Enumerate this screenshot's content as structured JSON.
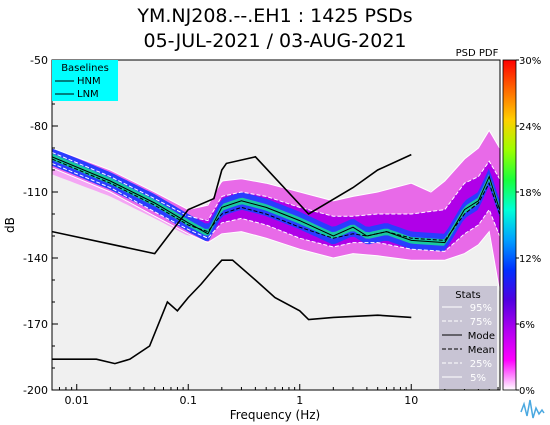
{
  "chart_data": {
    "type": "heatmap",
    "title_line1": "YM.NJ208.--.EH1 : 1425 PSDs",
    "title_line2": "05-JUL-2021 / 03-AUG-2021",
    "xlabel": "Frequency (Hz)",
    "ylabel": "dB",
    "x_scale": "log",
    "xlim": [
      0.006,
      62.5
    ],
    "ylim": [
      -200,
      -50
    ],
    "x_ticks": [
      {
        "v": 0.01,
        "label": "0.01"
      },
      {
        "v": 0.1,
        "label": "0.1"
      },
      {
        "v": 1,
        "label": "1"
      },
      {
        "v": 10,
        "label": "10"
      }
    ],
    "y_ticks": [
      {
        "v": -50,
        "label": "-50"
      },
      {
        "v": -80,
        "label": "-80"
      },
      {
        "v": -110,
        "label": "-110"
      },
      {
        "v": -140,
        "label": "-140"
      },
      {
        "v": -170,
        "label": "-170"
      },
      {
        "v": -200,
        "label": "-200"
      }
    ],
    "colorbar": {
      "label": "PSD PDF",
      "ticks": [
        "30%",
        "24%",
        "18%",
        "12%",
        "6%",
        "0%"
      ],
      "colors": [
        "#ff0000",
        "#ff6a00",
        "#ffd000",
        "#9cff00",
        "#19ff3c",
        "#00ffd8",
        "#00a0ff",
        "#0030ff",
        "#5000e0",
        "#b000f0",
        "#ff00ff",
        "#ffffff"
      ]
    },
    "baselines_legend": {
      "title": "Baselines",
      "items": [
        "HNM",
        "LNM"
      ]
    },
    "stats_legend": {
      "title": "Stats",
      "items": [
        "95%",
        "75%",
        "Mode",
        "Mean",
        "25%",
        "5%"
      ]
    },
    "hnm": [
      [
        0.006,
        -128
      ],
      [
        0.05,
        -138
      ],
      [
        0.1,
        -118
      ],
      [
        0.17,
        -113
      ],
      [
        0.2,
        -100
      ],
      [
        0.22,
        -97
      ],
      [
        0.4,
        -94
      ],
      [
        1.2,
        -120
      ],
      [
        3,
        -108
      ],
      [
        5,
        -100
      ],
      [
        10,
        -93
      ]
    ],
    "lnm": [
      [
        0.006,
        -186
      ],
      [
        0.015,
        -186
      ],
      [
        0.022,
        -188
      ],
      [
        0.03,
        -186
      ],
      [
        0.045,
        -180
      ],
      [
        0.065,
        -160
      ],
      [
        0.08,
        -164
      ],
      [
        0.1,
        -158
      ],
      [
        0.13,
        -152
      ],
      [
        0.17,
        -145
      ],
      [
        0.2,
        -141
      ],
      [
        0.25,
        -141
      ],
      [
        0.4,
        -150
      ],
      [
        0.6,
        -158
      ],
      [
        1.0,
        -164
      ],
      [
        1.2,
        -168
      ],
      [
        2,
        -167
      ],
      [
        5,
        -166
      ],
      [
        10,
        -167
      ]
    ],
    "mode": [
      [
        0.006,
        -94
      ],
      [
        0.02,
        -105
      ],
      [
        0.05,
        -115
      ],
      [
        0.1,
        -124
      ],
      [
        0.15,
        -129
      ],
      [
        0.2,
        -117
      ],
      [
        0.3,
        -114
      ],
      [
        0.5,
        -117
      ],
      [
        1,
        -123
      ],
      [
        2,
        -130
      ],
      [
        3,
        -126
      ],
      [
        4,
        -130
      ],
      [
        6,
        -128
      ],
      [
        10,
        -132
      ],
      [
        20,
        -133
      ],
      [
        30,
        -118
      ],
      [
        40,
        -114
      ],
      [
        50,
        -103
      ],
      [
        62,
        -118
      ]
    ],
    "mean": [
      [
        0.006,
        -95
      ],
      [
        0.02,
        -106
      ],
      [
        0.05,
        -116
      ],
      [
        0.1,
        -125
      ],
      [
        0.15,
        -128
      ],
      [
        0.2,
        -120
      ],
      [
        0.3,
        -117
      ],
      [
        0.5,
        -120
      ],
      [
        1,
        -126
      ],
      [
        2,
        -131
      ],
      [
        3,
        -129
      ],
      [
        4,
        -130
      ],
      [
        6,
        -128
      ],
      [
        10,
        -131
      ],
      [
        20,
        -132
      ],
      [
        30,
        -120
      ],
      [
        40,
        -115
      ],
      [
        50,
        -106
      ],
      [
        62,
        -120
      ]
    ],
    "p95": [
      [
        0.006,
        -90
      ],
      [
        0.02,
        -100
      ],
      [
        0.05,
        -110
      ],
      [
        0.1,
        -118
      ],
      [
        0.15,
        -116
      ],
      [
        0.2,
        -105
      ],
      [
        0.3,
        -104
      ],
      [
        0.5,
        -106
      ],
      [
        1,
        -110
      ],
      [
        2,
        -114
      ],
      [
        3,
        -112
      ],
      [
        5,
        -110
      ],
      [
        10,
        -106
      ],
      [
        15,
        -110
      ],
      [
        20,
        -105
      ],
      [
        30,
        -95
      ],
      [
        40,
        -90
      ],
      [
        50,
        -82
      ],
      [
        62,
        -90
      ]
    ],
    "p75": [
      [
        0.006,
        -92
      ],
      [
        0.02,
        -103
      ],
      [
        0.05,
        -113
      ],
      [
        0.1,
        -121
      ],
      [
        0.15,
        -123
      ],
      [
        0.2,
        -112
      ],
      [
        0.3,
        -110
      ],
      [
        0.5,
        -112
      ],
      [
        1,
        -117
      ],
      [
        2,
        -121
      ],
      [
        3,
        -121
      ],
      [
        5,
        -120
      ],
      [
        10,
        -120
      ],
      [
        20,
        -118
      ],
      [
        30,
        -106
      ],
      [
        40,
        -103
      ],
      [
        50,
        -96
      ],
      [
        62,
        -104
      ]
    ],
    "p25": [
      [
        0.006,
        -97
      ],
      [
        0.02,
        -108
      ],
      [
        0.05,
        -119
      ],
      [
        0.1,
        -127
      ],
      [
        0.15,
        -131
      ],
      [
        0.2,
        -124
      ],
      [
        0.3,
        -122
      ],
      [
        0.5,
        -125
      ],
      [
        1,
        -131
      ],
      [
        2,
        -135
      ],
      [
        3,
        -133
      ],
      [
        5,
        -133
      ],
      [
        10,
        -136
      ],
      [
        20,
        -137
      ],
      [
        30,
        -129
      ],
      [
        40,
        -125
      ],
      [
        50,
        -118
      ],
      [
        62,
        -130
      ]
    ],
    "p5": [
      [
        0.006,
        -99
      ],
      [
        0.02,
        -110
      ],
      [
        0.05,
        -121
      ],
      [
        0.1,
        -129
      ],
      [
        0.15,
        -133
      ],
      [
        0.2,
        -129
      ],
      [
        0.3,
        -128
      ],
      [
        0.5,
        -131
      ],
      [
        1,
        -136
      ],
      [
        2,
        -140
      ],
      [
        3,
        -138
      ],
      [
        5,
        -139
      ],
      [
        10,
        -141
      ],
      [
        20,
        -141
      ],
      [
        30,
        -138
      ],
      [
        40,
        -134
      ],
      [
        50,
        -128
      ],
      [
        62,
        -155
      ]
    ],
    "grid": false,
    "plot_background": "#f0f0f0"
  }
}
